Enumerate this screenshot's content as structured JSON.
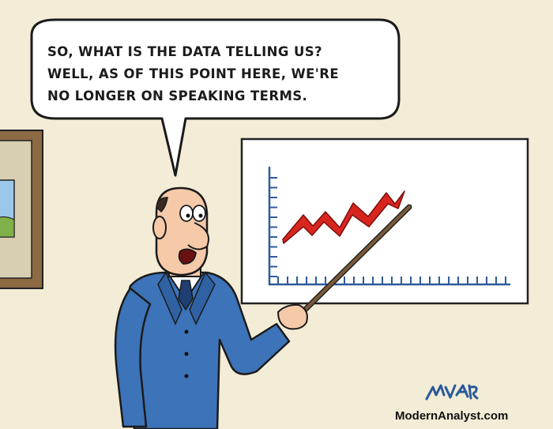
{
  "speech_bubble": {
    "lines": [
      "SO, WHAT IS THE DATA TELLING US?",
      "WELL, AS OF THIS POINT HERE, WE'RE",
      "NO LONGER ON SPEAKING TERMS."
    ]
  },
  "footer": {
    "credit": "ModernAnalyst.com"
  },
  "colors": {
    "wall": "#f3ecd6",
    "suit": "#3d73b8",
    "chart_line": "#d8261f",
    "axis": "#2f5a9c"
  },
  "icons": {
    "signature": "artist-signature-icon",
    "picture": "picture-frame-icon"
  }
}
